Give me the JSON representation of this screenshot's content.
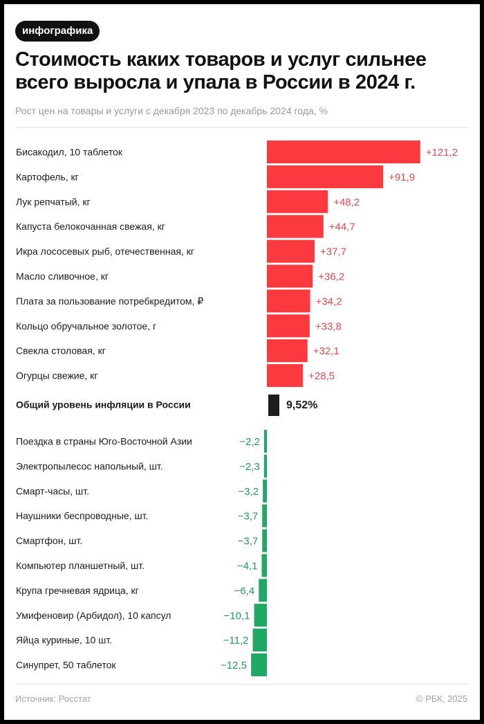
{
  "badge": "инфографика",
  "title": "Стоимость каких товаров и услуг сильнее всего выросла и упала в России в 2024 г.",
  "subtitle": "Рост цен на товары и услуги с декабря 2023 по декабрь 2024 года, %",
  "source": "Источник: Росстат",
  "copyright": "© РБК, 2025",
  "colors": {
    "up": "#fa3a3f",
    "down": "#1fa866",
    "total": "#1e1e1e",
    "up_text": "#e8484c",
    "down_text": "#1f9b5e"
  },
  "chart_data": {
    "type": "bar",
    "orientation": "horizontal",
    "title": "Стоимость каких товаров и услуг сильнее всего выросла и упала в России в 2024 г.",
    "subtitle": "Рост цен на товары и услуги с декабря 2023 по декабрь 2024 года, %",
    "unit": "%",
    "groups": [
      {
        "name": "rise",
        "items": [
          {
            "label": "Бисакодил, 10 таблеток",
            "value": 121.2,
            "text": "+121,2"
          },
          {
            "label": "Картофель, кг",
            "value": 91.9,
            "text": "+91,9"
          },
          {
            "label": "Лук репчатый, кг",
            "value": 48.2,
            "text": "+48,2"
          },
          {
            "label": "Капуста белокочанная свежая, кг",
            "value": 44.7,
            "text": "+44,7"
          },
          {
            "label": "Икра лососевых рыб, отечественная, кг",
            "value": 37.7,
            "text": "+37,7"
          },
          {
            "label": "Масло сливочное, кг",
            "value": 36.2,
            "text": "+36,2"
          },
          {
            "label": "Плата за пользование потребкредитом, ₽",
            "value": 34.2,
            "text": "+34,2"
          },
          {
            "label": "Кольцо обручальное золотое, г",
            "value": 33.8,
            "text": "+33,8"
          },
          {
            "label": "Свекла столовая, кг",
            "value": 32.1,
            "text": "+32,1"
          },
          {
            "label": "Огурцы свежие, кг",
            "value": 28.5,
            "text": "+28,5"
          }
        ]
      },
      {
        "name": "total",
        "items": [
          {
            "label": "Общий уровень инфляции в России",
            "value": 9.52,
            "text": "9,52%"
          }
        ]
      },
      {
        "name": "fall",
        "items": [
          {
            "label": "Поездка в страны Юго-Восточной Азии",
            "value": -2.2,
            "text": "−2,2"
          },
          {
            "label": "Электропылесос напольный, шт.",
            "value": -2.3,
            "text": "−2,3"
          },
          {
            "label": "Смарт-часы, шт.",
            "value": -3.2,
            "text": "−3,2"
          },
          {
            "label": "Наушники беспроводные, шт.",
            "value": -3.7,
            "text": "−3,7"
          },
          {
            "label": "Смартфон, шт.",
            "value": -3.7,
            "text": "−3,7"
          },
          {
            "label": "Компьютер планшетный, шт.",
            "value": -4.1,
            "text": "−4,1"
          },
          {
            "label": "Крупа гречневая ядрица, кг",
            "value": -6.4,
            "text": "−6,4"
          },
          {
            "label": "Умифеновир (Арбидол), 10 капсул",
            "value": -10.1,
            "text": "−10,1"
          },
          {
            "label": "Яйца куриные, 10 шт.",
            "value": -11.2,
            "text": "−11,2"
          },
          {
            "label": "Синупрет, 50 таблеток",
            "value": -12.5,
            "text": "−12,5"
          }
        ]
      }
    ]
  }
}
